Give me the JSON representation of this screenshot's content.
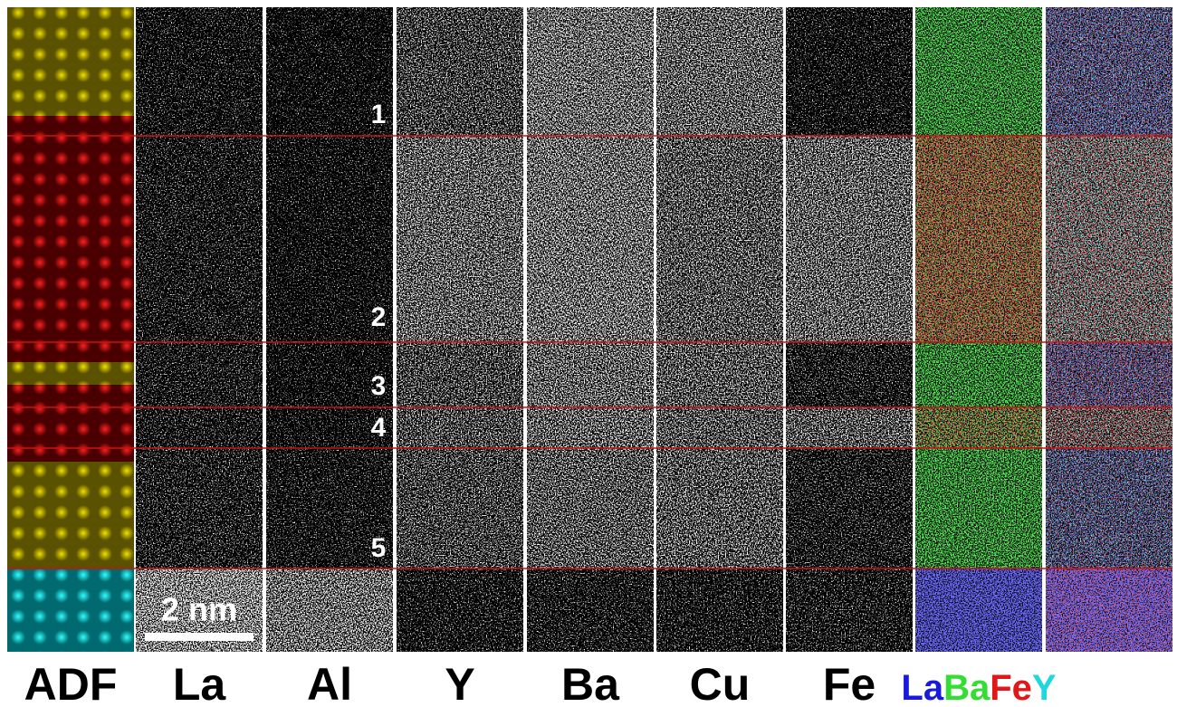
{
  "panels": [
    "ADF",
    "La",
    "Al",
    "Y",
    "Ba",
    "Cu",
    "Fe"
  ],
  "composite_labels": [
    {
      "label": "La",
      "color": "#1a1adc"
    },
    {
      "label": "Ba",
      "color": "#33dd33"
    },
    {
      "label": "Fe",
      "color": "#e01818"
    },
    {
      "label": "Y",
      "color": "#22d6e0"
    }
  ],
  "layer_numbers": [
    "1",
    "2",
    "3",
    "4",
    "5"
  ],
  "scale_bar": "2 nm"
}
